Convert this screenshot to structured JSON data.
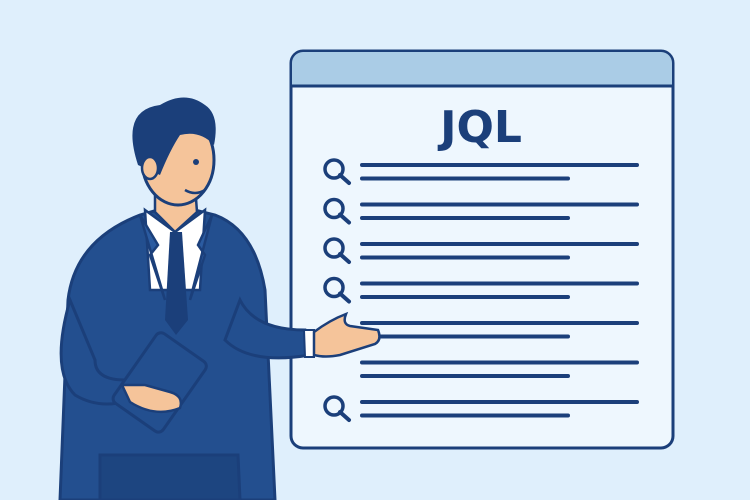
{
  "board": {
    "title": "JQL",
    "rows": [
      {
        "icon": "search-icon",
        "has_icon": true
      },
      {
        "icon": "search-icon",
        "has_icon": true
      },
      {
        "icon": "search-icon",
        "has_icon": true
      },
      {
        "icon": "search-icon",
        "has_icon": true
      },
      {
        "icon": "search-icon",
        "has_icon": false
      },
      {
        "icon": "search-icon",
        "has_icon": false
      },
      {
        "icon": "search-icon",
        "has_icon": true
      }
    ]
  },
  "colors": {
    "background": "#dfeffc",
    "outline": "#1b3f7a",
    "suit": "#234f8f",
    "header": "#aacce6",
    "board": "#eef7fe",
    "skin": "#f5c49a"
  }
}
